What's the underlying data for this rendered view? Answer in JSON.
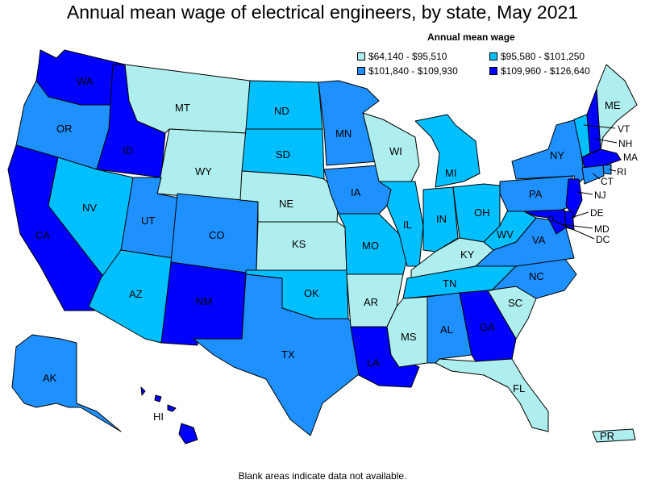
{
  "title": "Annual mean wage of electrical engineers, by state, May 2021",
  "legend": {
    "title": "Annual mean wage",
    "items": [
      {
        "label": "$64,140 - $95,510",
        "color": "#AFEEEE"
      },
      {
        "label": "$95,580 - $101,250",
        "color": "#00BFFF"
      },
      {
        "label": "$101,840 - $109,930",
        "color": "#1E90FF"
      },
      {
        "label": "$109,960 - $126,640",
        "color": "#0000FF"
      }
    ]
  },
  "footer": "Blank areas indicate data not available.",
  "states": {
    "WA": {
      "label": "WA",
      "color": "#0000FF"
    },
    "OR": {
      "label": "OR",
      "color": "#1E90FF"
    },
    "CA": {
      "label": "CA",
      "color": "#0000FF"
    },
    "ID": {
      "label": "ID",
      "color": "#0000FF"
    },
    "NV": {
      "label": "NV",
      "color": "#00BFFF"
    },
    "MT": {
      "label": "MT",
      "color": "#AFEEEE"
    },
    "WY": {
      "label": "WY",
      "color": "#AFEEEE"
    },
    "UT": {
      "label": "UT",
      "color": "#1E90FF"
    },
    "AZ": {
      "label": "AZ",
      "color": "#00BFFF"
    },
    "CO": {
      "label": "CO",
      "color": "#1E90FF"
    },
    "NM": {
      "label": "NM",
      "color": "#0000FF"
    },
    "ND": {
      "label": "ND",
      "color": "#00BFFF"
    },
    "SD": {
      "label": "SD",
      "color": "#00BFFF"
    },
    "NE": {
      "label": "NE",
      "color": "#AFEEEE"
    },
    "KS": {
      "label": "KS",
      "color": "#AFEEEE"
    },
    "OK": {
      "label": "OK",
      "color": "#00BFFF"
    },
    "TX": {
      "label": "TX",
      "color": "#1E90FF"
    },
    "MN": {
      "label": "MN",
      "color": "#1E90FF"
    },
    "IA": {
      "label": "IA",
      "color": "#1E90FF"
    },
    "MO": {
      "label": "MO",
      "color": "#00BFFF"
    },
    "AR": {
      "label": "AR",
      "color": "#AFEEEE"
    },
    "LA": {
      "label": "LA",
      "color": "#0000FF"
    },
    "WI": {
      "label": "WI",
      "color": "#AFEEEE"
    },
    "IL": {
      "label": "IL",
      "color": "#00BFFF"
    },
    "MI": {
      "label": "MI",
      "color": "#00BFFF"
    },
    "IN": {
      "label": "IN",
      "color": "#00BFFF"
    },
    "OH": {
      "label": "OH",
      "color": "#00BFFF"
    },
    "KY": {
      "label": "KY",
      "color": "#AFEEEE"
    },
    "TN": {
      "label": "TN",
      "color": "#00BFFF"
    },
    "MS": {
      "label": "MS",
      "color": "#AFEEEE"
    },
    "AL": {
      "label": "AL",
      "color": "#1E90FF"
    },
    "GA": {
      "label": "GA",
      "color": "#0000FF"
    },
    "FL": {
      "label": "FL",
      "color": "#AFEEEE"
    },
    "SC": {
      "label": "SC",
      "color": "#AFEEEE"
    },
    "NC": {
      "label": "NC",
      "color": "#1E90FF"
    },
    "VA": {
      "label": "VA",
      "color": "#1E90FF"
    },
    "WV": {
      "label": "WV",
      "color": "#00BFFF"
    },
    "PA": {
      "label": "PA",
      "color": "#1E90FF"
    },
    "NY": {
      "label": "NY",
      "color": "#1E90FF"
    },
    "VT": {
      "label": "VT",
      "color": "#00BFFF"
    },
    "NH": {
      "label": "NH",
      "color": "#0000FF"
    },
    "ME": {
      "label": "ME",
      "color": "#AFEEEE"
    },
    "MA": {
      "label": "MA",
      "color": "#0000FF"
    },
    "RI": {
      "label": "RI",
      "color": "#1E90FF"
    },
    "CT": {
      "label": "CT",
      "color": "#1E90FF"
    },
    "NJ": {
      "label": "NJ",
      "color": "#0000FF"
    },
    "DE": {
      "label": "DE",
      "color": "#0000FF"
    },
    "MD": {
      "label": "MD",
      "color": "#0000FF"
    },
    "DC": {
      "label": "DC",
      "color": "#0000FF"
    },
    "AK": {
      "label": "AK",
      "color": "#1E90FF"
    },
    "HI": {
      "label": "HI",
      "color": "#0000FF"
    },
    "PR": {
      "label": "PR",
      "color": "#AFEEEE"
    }
  }
}
